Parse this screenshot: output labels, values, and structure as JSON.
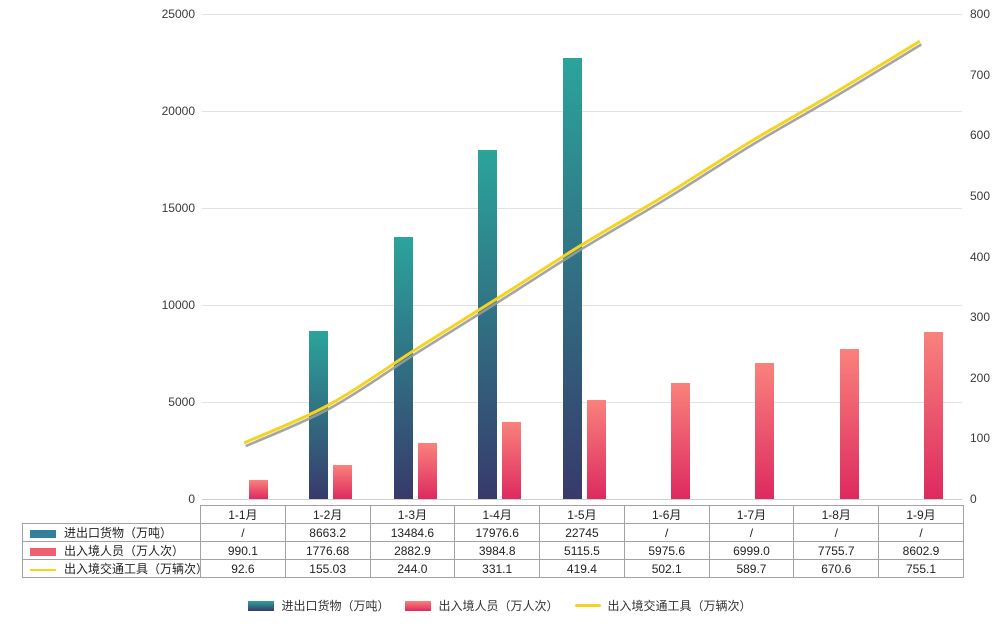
{
  "chart_data": {
    "type": "bar+line",
    "title": "",
    "categories": [
      "1-1月",
      "1-2月",
      "1-3月",
      "1-4月",
      "1-5月",
      "1-6月",
      "1-7月",
      "1-8月",
      "1-9月"
    ],
    "series": [
      {
        "name": "进出口货物（万吨）",
        "type": "bar",
        "axis": "left",
        "color_top": "#2BA49B",
        "color_bottom": "#373A6B",
        "legend_color": "#31819B",
        "values": [
          null,
          8663.2,
          13484.6,
          17976.6,
          22745,
          null,
          null,
          null,
          null
        ],
        "display": [
          "/",
          "8663.2",
          "13484.6",
          "17976.6",
          "22745",
          "/",
          "/",
          "/",
          "/"
        ]
      },
      {
        "name": "出入境人员（万人次）",
        "type": "bar",
        "axis": "left",
        "color_top": "#F9827C",
        "color_bottom": "#DD2A5F",
        "legend_color": "#EE5F72",
        "values": [
          990.1,
          1776.68,
          2882.9,
          3984.8,
          5115.5,
          5975.6,
          6999.0,
          7755.7,
          8602.9
        ],
        "display": [
          "990.1",
          "1776.68",
          "2882.9",
          "3984.8",
          "5115.5",
          "5975.6",
          "6999.0",
          "7755.7",
          "8602.9"
        ]
      },
      {
        "name": "出入境交通工具（万辆次）",
        "type": "line",
        "axis": "right",
        "color": "#F5D41F",
        "shadow_color": "#9B9B9B",
        "legend_color": "#F5D41F",
        "values": [
          92.6,
          155.03,
          244.0,
          331.1,
          419.4,
          502.1,
          589.7,
          670.6,
          755.1
        ],
        "display": [
          "92.6",
          "155.03",
          "244.0",
          "331.1",
          "419.4",
          "502.1",
          "589.7",
          "670.6",
          "755.1"
        ]
      }
    ],
    "left_axis": {
      "min": 0,
      "max": 25000,
      "ticks": [
        "0",
        "5000",
        "10000",
        "15000",
        "20000",
        "25000"
      ]
    },
    "right_axis": {
      "min": 0,
      "max": 800,
      "ticks": [
        "0",
        "100",
        "200",
        "300",
        "400",
        "500",
        "600",
        "700",
        "800"
      ]
    },
    "grid": true,
    "legend_position": "bottom"
  }
}
